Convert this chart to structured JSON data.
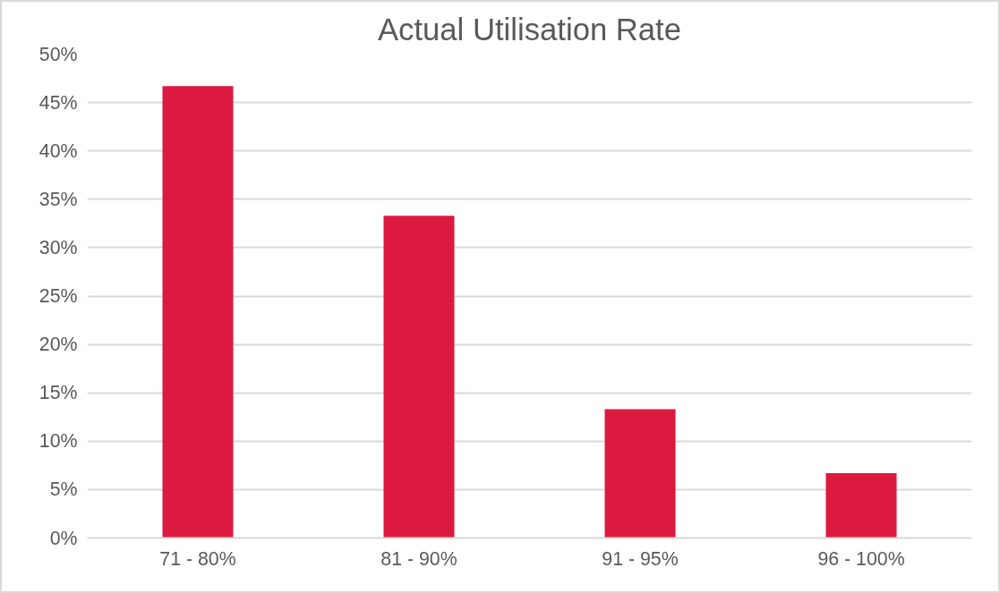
{
  "chart_data": {
    "type": "bar",
    "title": "Actual Utilisation Rate",
    "categories": [
      "71 - 80%",
      "81 - 90%",
      "91 - 95%",
      "96 - 100%"
    ],
    "values": [
      46.7,
      33.3,
      13.3,
      6.7
    ],
    "color": "#dc1a40",
    "ylim": [
      0,
      50
    ],
    "yticks": [
      {
        "value": 0,
        "label": "0%"
      },
      {
        "value": 5,
        "label": "5%"
      },
      {
        "value": 10,
        "label": "10%"
      },
      {
        "value": 15,
        "label": "15%"
      },
      {
        "value": 20,
        "label": "20%"
      },
      {
        "value": 25,
        "label": "25%"
      },
      {
        "value": 30,
        "label": "30%"
      },
      {
        "value": 35,
        "label": "35%"
      },
      {
        "value": 40,
        "label": "40%"
      },
      {
        "value": 45,
        "label": "45%"
      },
      {
        "value": 50,
        "label": "50%"
      }
    ],
    "grid": "y"
  }
}
